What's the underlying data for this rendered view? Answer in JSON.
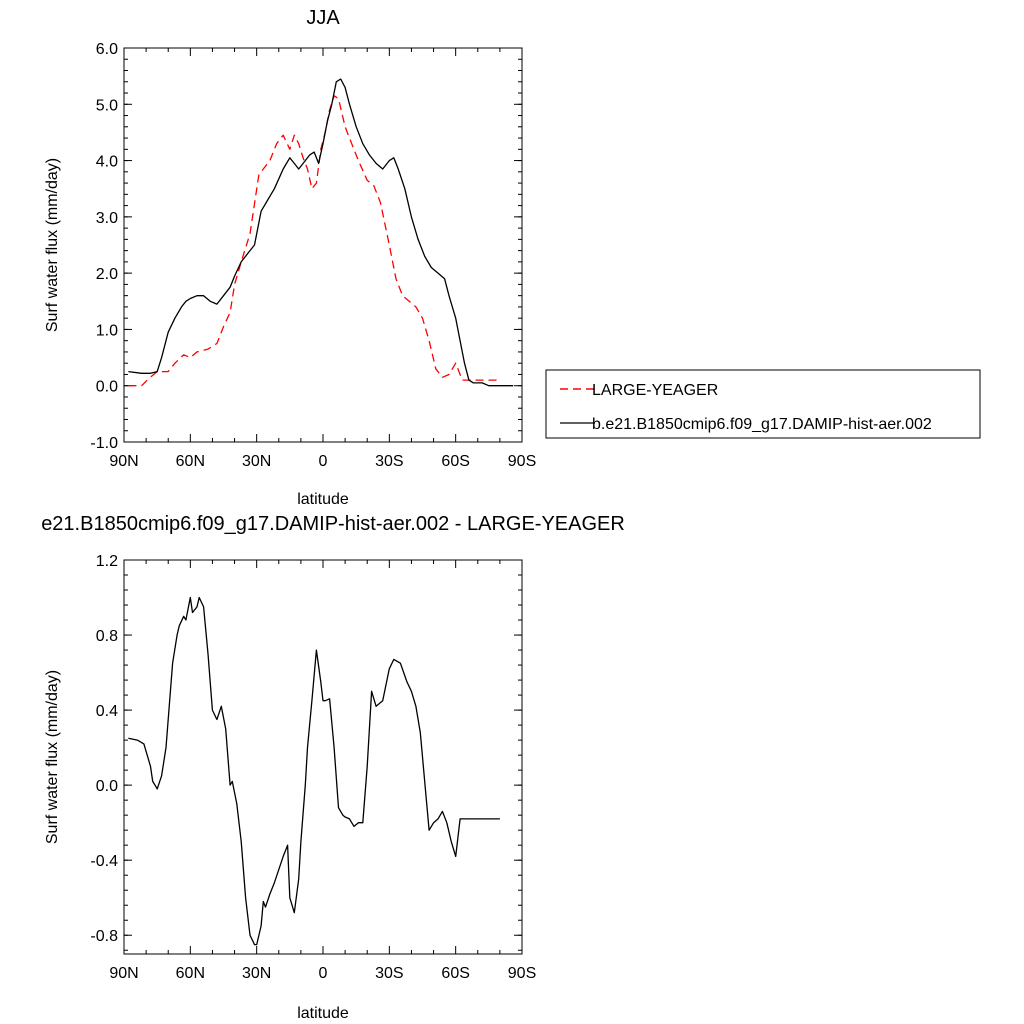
{
  "chart_data": [
    {
      "type": "line",
      "title": "JJA",
      "xlabel": "latitude",
      "ylabel": "Surf water flux (mm/day)",
      "x_axis": {
        "range": [
          90,
          -90
        ],
        "ticks": [
          90,
          60,
          30,
          0,
          -30,
          -60,
          -90
        ],
        "tick_labels": [
          "90N",
          "60N",
          "30N",
          "0",
          "30S",
          "60S",
          "90S"
        ]
      },
      "y_axis": {
        "range": [
          -1.0,
          6.0
        ],
        "ticks": [
          -1,
          0,
          1,
          2,
          3,
          4,
          5,
          6
        ],
        "tick_labels": [
          "-1.0",
          "0.0",
          "1.0",
          "2.0",
          "3.0",
          "4.0",
          "5.0",
          "6.0"
        ]
      },
      "grid": false,
      "legend_position": "right",
      "series": [
        {
          "name": "LARGE-YEAGER",
          "color": "#ff0000",
          "dash": "dashed",
          "x": [
            88,
            82,
            79,
            75,
            70,
            67,
            63,
            60,
            57,
            52,
            48,
            45,
            42,
            40,
            37,
            33,
            29,
            27,
            24,
            21,
            18,
            15,
            13,
            11,
            9,
            7,
            5,
            3,
            1,
            -1,
            -3,
            -5,
            -7,
            -10,
            -13,
            -16,
            -20,
            -23,
            -26,
            -30,
            -33,
            -36,
            -39,
            -42,
            -45,
            -48,
            -51,
            -54,
            -57,
            -60,
            -63,
            -66,
            -69,
            -72,
            -75,
            -78,
            -80
          ],
          "y": [
            0.0,
            0.0,
            0.12,
            0.25,
            0.25,
            0.4,
            0.55,
            0.5,
            0.6,
            0.65,
            0.75,
            1.05,
            1.3,
            1.8,
            2.2,
            2.7,
            3.75,
            3.85,
            4.0,
            4.3,
            4.45,
            4.2,
            4.45,
            4.3,
            4.05,
            3.85,
            3.5,
            3.6,
            4.2,
            4.5,
            4.9,
            5.15,
            5.1,
            4.6,
            4.3,
            4.0,
            3.65,
            3.55,
            3.25,
            2.5,
            1.9,
            1.6,
            1.5,
            1.4,
            1.2,
            0.8,
            0.3,
            0.15,
            0.2,
            0.4,
            0.1,
            0.1,
            0.1,
            0.1,
            0.1,
            0.1,
            0.1
          ]
        },
        {
          "name": "b.e21.B1850cmip6.f09_g17.DAMIP-hist-aer.002",
          "color": "#000000",
          "dash": "solid",
          "x": [
            88,
            82,
            78,
            75,
            73,
            70,
            67,
            64,
            62,
            60,
            57,
            54,
            51,
            48,
            45,
            42,
            40,
            37,
            34,
            31,
            28,
            25,
            22,
            18,
            15,
            13,
            11,
            8,
            6,
            4,
            2,
            0,
            -2,
            -4,
            -6,
            -8,
            -10,
            -12,
            -15,
            -18,
            -21,
            -24,
            -27,
            -30,
            -32,
            -34,
            -37,
            -40,
            -43,
            -46,
            -49,
            -52,
            -55,
            -57,
            -60,
            -62,
            -64,
            -66,
            -68,
            -70,
            -72,
            -75,
            -78,
            -82,
            -86
          ],
          "y": [
            0.25,
            0.22,
            0.22,
            0.25,
            0.5,
            0.95,
            1.2,
            1.4,
            1.5,
            1.55,
            1.6,
            1.6,
            1.5,
            1.45,
            1.6,
            1.75,
            1.95,
            2.2,
            2.35,
            2.5,
            3.1,
            3.3,
            3.5,
            3.85,
            4.05,
            3.95,
            3.85,
            4.0,
            4.1,
            4.15,
            3.95,
            4.3,
            4.7,
            5.0,
            5.4,
            5.45,
            5.3,
            5.0,
            4.6,
            4.3,
            4.1,
            3.95,
            3.85,
            4.0,
            4.05,
            3.85,
            3.5,
            3.0,
            2.6,
            2.3,
            2.1,
            2.0,
            1.9,
            1.6,
            1.2,
            0.8,
            0.4,
            0.1,
            0.05,
            0.05,
            0.05,
            0.0,
            0.0,
            0.0,
            0.0
          ]
        }
      ]
    },
    {
      "type": "line",
      "title": "e21.B1850cmip6.f09_g17.DAMIP-hist-aer.002 - LARGE-YEAGER",
      "xlabel": "latitude",
      "ylabel": "Surf water flux (mm/day)",
      "x_axis": {
        "range": [
          90,
          -90
        ],
        "ticks": [
          90,
          60,
          30,
          0,
          -30,
          -60,
          -90
        ],
        "tick_labels": [
          "90N",
          "60N",
          "30N",
          "0",
          "30S",
          "60S",
          "90S"
        ]
      },
      "y_axis": {
        "range": [
          -0.9,
          1.2
        ],
        "ticks": [
          -0.8,
          -0.4,
          0.0,
          0.4,
          0.8,
          1.2
        ],
        "tick_labels": [
          "-0.8",
          "-0.4",
          "0.0",
          "0.4",
          "0.8",
          "1.2"
        ]
      },
      "grid": false,
      "series": [
        {
          "color": "#000000",
          "dash": "solid",
          "x": [
            88,
            84,
            81,
            78,
            77,
            76,
            75,
            73,
            71,
            69,
            68,
            66,
            65,
            63,
            62,
            60,
            59,
            57,
            56,
            54,
            52,
            50,
            48,
            46,
            44,
            42,
            41,
            39,
            37,
            35,
            33,
            31,
            30,
            28,
            27,
            26,
            24,
            22,
            20,
            18,
            16,
            15,
            13,
            11,
            10,
            8,
            7,
            5,
            3,
            1,
            0,
            -1,
            -3,
            -5,
            -7,
            -9,
            -10,
            -12,
            -14,
            -16,
            -18,
            -20,
            -22,
            -24,
            -27,
            -30,
            -32,
            -35,
            -38,
            -40,
            -42,
            -44,
            -46,
            -48,
            -50,
            -52,
            -54,
            -56,
            -58,
            -60,
            -62,
            -64,
            -66,
            -68,
            -70,
            -72,
            -74,
            -76,
            -78,
            -80
          ],
          "y": [
            0.25,
            0.24,
            0.22,
            0.1,
            0.02,
            0.0,
            -0.02,
            0.05,
            0.2,
            0.5,
            0.65,
            0.8,
            0.85,
            0.9,
            0.88,
            1.0,
            0.92,
            0.95,
            1.0,
            0.95,
            0.7,
            0.4,
            0.35,
            0.42,
            0.3,
            0.0,
            0.02,
            -0.1,
            -0.3,
            -0.6,
            -0.8,
            -0.85,
            -0.85,
            -0.75,
            -0.62,
            -0.65,
            -0.58,
            -0.52,
            -0.45,
            -0.38,
            -0.32,
            -0.6,
            -0.68,
            -0.5,
            -0.3,
            0.0,
            0.2,
            0.45,
            0.72,
            0.55,
            0.45,
            0.45,
            0.46,
            0.2,
            -0.12,
            -0.16,
            -0.17,
            -0.18,
            -0.22,
            -0.2,
            -0.2,
            0.1,
            0.5,
            0.42,
            0.45,
            0.62,
            0.67,
            0.65,
            0.55,
            0.5,
            0.42,
            0.28,
            0.02,
            -0.24,
            -0.2,
            -0.18,
            -0.14,
            -0.2,
            -0.3,
            -0.38,
            -0.18,
            -0.18,
            -0.18,
            -0.18,
            -0.18,
            -0.18,
            -0.18,
            -0.18,
            -0.18,
            -0.18
          ]
        }
      ]
    }
  ]
}
